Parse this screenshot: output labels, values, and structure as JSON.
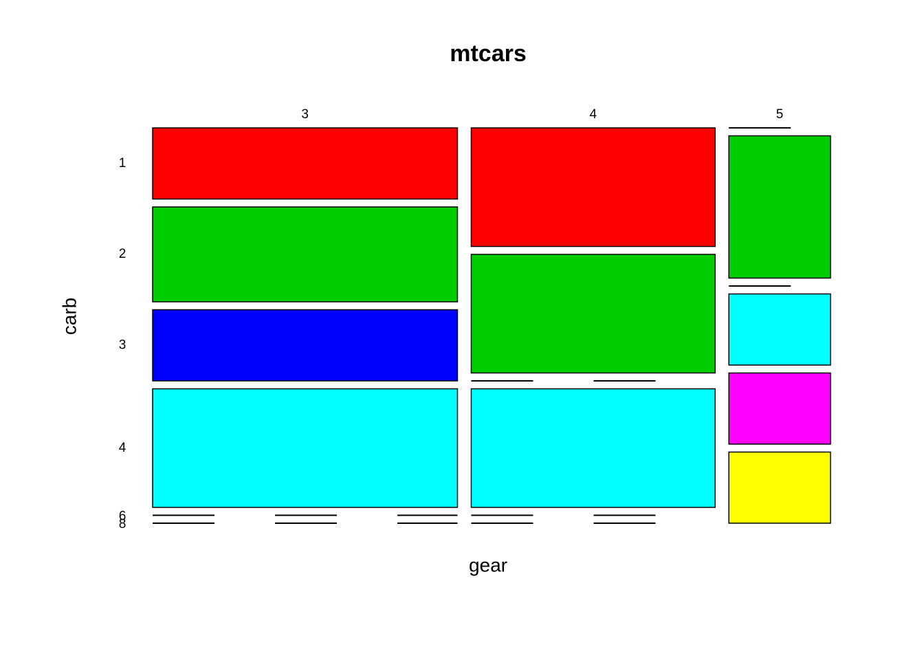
{
  "chart_data": {
    "type": "mosaic",
    "title": "mtcars",
    "xlabel": "gear",
    "ylabel": "carb",
    "categories": [
      "3",
      "4",
      "5"
    ],
    "series": [
      {
        "name": "1",
        "color": "#ff0000",
        "values": [
          3,
          4,
          0
        ]
      },
      {
        "name": "2",
        "color": "#00cd00",
        "values": [
          4,
          4,
          2
        ]
      },
      {
        "name": "3",
        "color": "#0000ff",
        "values": [
          3,
          0,
          0
        ]
      },
      {
        "name": "4",
        "color": "#00ffff",
        "values": [
          5,
          4,
          1
        ]
      },
      {
        "name": "6",
        "color": "#ff00ff",
        "values": [
          0,
          0,
          1
        ]
      },
      {
        "name": "8",
        "color": "#ffff00",
        "values": [
          0,
          0,
          1
        ]
      }
    ]
  }
}
